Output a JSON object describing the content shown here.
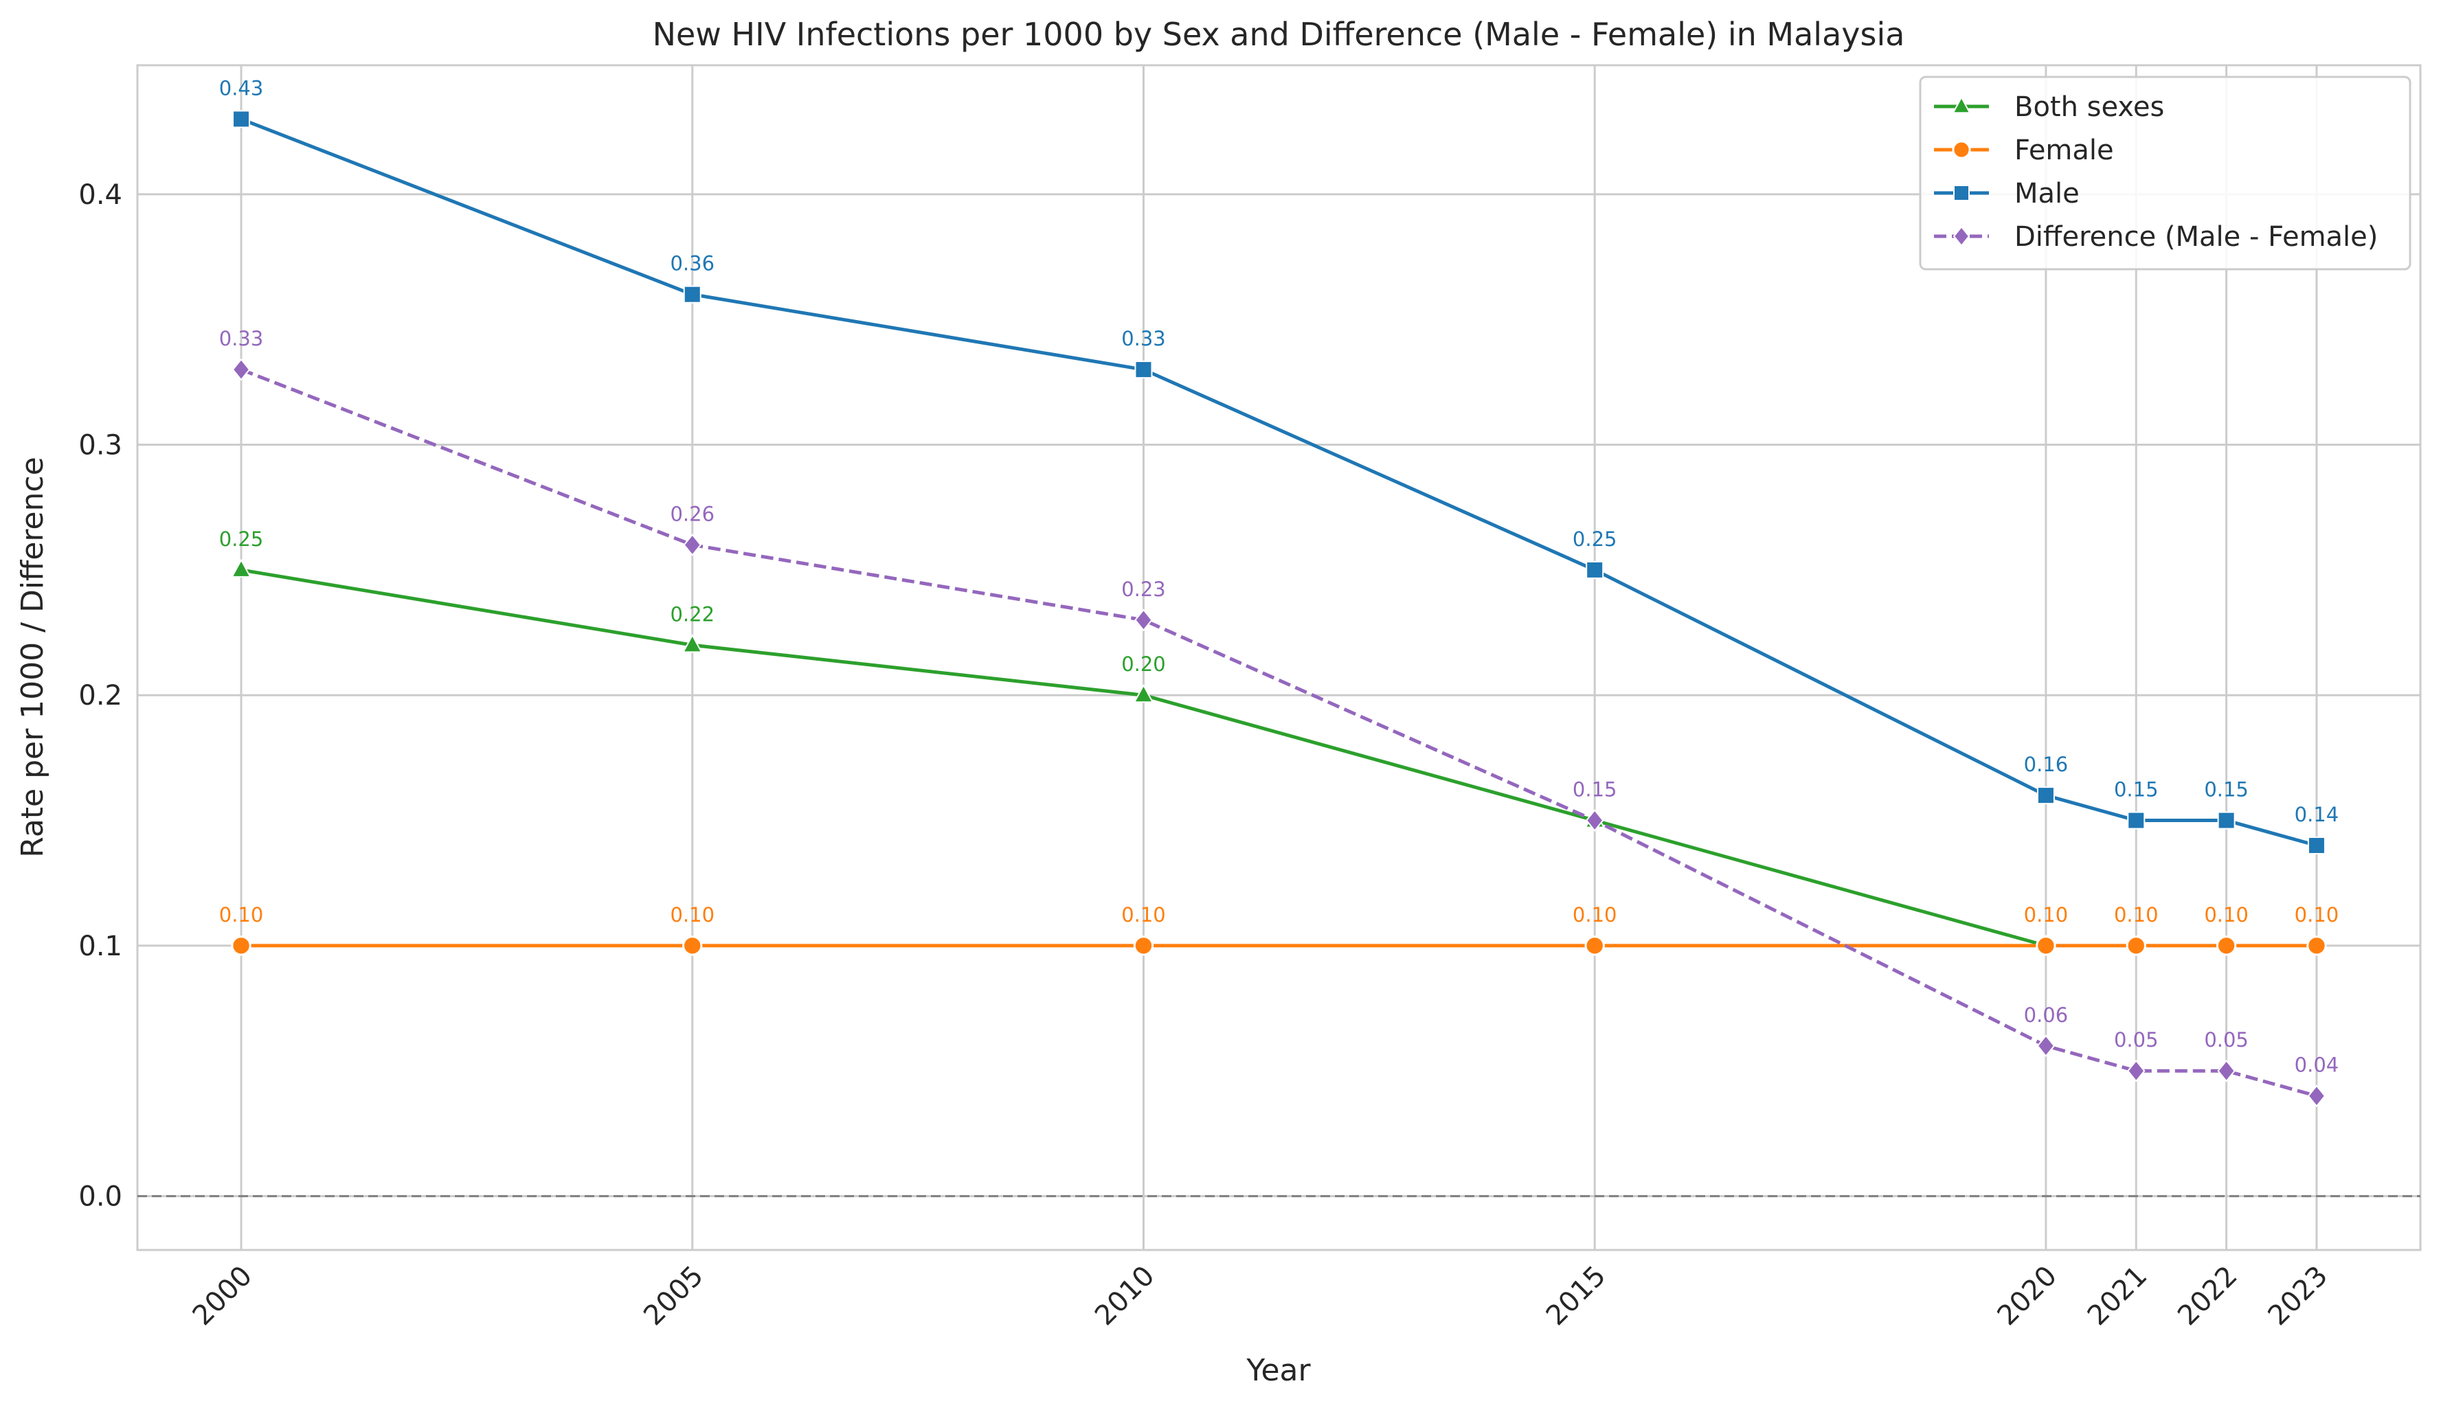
{
  "chart_data": {
    "type": "line",
    "title": "New HIV Infections per 1000 by Sex and Difference (Male - Female) in Malaysia",
    "xlabel": "Year",
    "ylabel": "Rate per 1000 / Difference",
    "x": [
      2000,
      2005,
      2010,
      2015,
      2020,
      2021,
      2022,
      2023
    ],
    "xlim": [
      1998.85,
      2024.15
    ],
    "ylim": [
      -0.0215,
      0.4515
    ],
    "yticks": [
      0.0,
      0.1,
      0.2,
      0.3,
      0.4
    ],
    "ytick_labels": [
      "0.0",
      "0.1",
      "0.2",
      "0.3",
      "0.4"
    ],
    "xtick_labels": [
      "2000",
      "2005",
      "2010",
      "2015",
      "2020",
      "2021",
      "2022",
      "2023"
    ],
    "grid": true,
    "legend_position": "top-right",
    "reference_line": {
      "y": 0.0,
      "style": "dashed",
      "color": "#808080"
    },
    "series": [
      {
        "name": "Both sexes",
        "color": "#2ca02c",
        "marker": "triangle",
        "linestyle": "solid",
        "values": [
          0.25,
          0.22,
          0.2,
          0.15,
          0.1,
          null,
          null,
          null
        ],
        "labels": [
          "0.25",
          "0.22",
          "0.20",
          "",
          "",
          "",
          "",
          ""
        ]
      },
      {
        "name": "Female",
        "color": "#ff7f0e",
        "marker": "circle",
        "linestyle": "solid",
        "values": [
          0.1,
          0.1,
          0.1,
          0.1,
          0.1,
          0.1,
          0.1,
          0.1
        ],
        "labels": [
          "0.10",
          "0.10",
          "0.10",
          "0.10",
          "0.10",
          "0.10",
          "0.10",
          "0.10"
        ]
      },
      {
        "name": "Male",
        "color": "#1f77b4",
        "marker": "square",
        "linestyle": "solid",
        "values": [
          0.43,
          0.36,
          0.33,
          0.25,
          0.16,
          0.15,
          0.15,
          0.14
        ],
        "labels": [
          "0.43",
          "0.36",
          "0.33",
          "0.25",
          "0.16",
          "0.15",
          "0.15",
          "0.14"
        ]
      },
      {
        "name": "Difference (Male - Female)",
        "color": "#9467bd",
        "marker": "diamond",
        "linestyle": "dashed",
        "values": [
          0.33,
          0.26,
          0.23,
          0.15,
          0.06,
          0.05,
          0.05,
          0.04
        ],
        "labels": [
          "0.33",
          "0.26",
          "0.23",
          "0.15",
          "0.06",
          "0.05",
          "0.05",
          "0.04"
        ]
      }
    ]
  }
}
